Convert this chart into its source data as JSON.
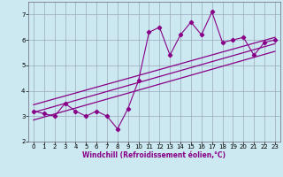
{
  "x": [
    0,
    1,
    2,
    3,
    4,
    5,
    6,
    7,
    8,
    9,
    10,
    11,
    12,
    13,
    14,
    15,
    16,
    17,
    18,
    19,
    20,
    21,
    22,
    23
  ],
  "y": [
    3.2,
    3.1,
    3.0,
    3.5,
    3.2,
    3.0,
    3.2,
    3.0,
    2.5,
    3.3,
    4.4,
    6.3,
    6.5,
    5.4,
    6.2,
    6.7,
    6.2,
    7.1,
    5.9,
    6.0,
    6.1,
    5.4,
    5.9,
    6.0
  ],
  "trend1_x": [
    0,
    23
  ],
  "trend1_y": [
    3.15,
    5.85
  ],
  "trend2_x": [
    0,
    23
  ],
  "trend2_y": [
    3.45,
    6.1
  ],
  "trend3_x": [
    0,
    23
  ],
  "trend3_y": [
    2.85,
    5.55
  ],
  "xlim": [
    -0.5,
    23.5
  ],
  "ylim": [
    2.0,
    7.5
  ],
  "yticks": [
    2,
    3,
    4,
    5,
    6,
    7
  ],
  "xticks": [
    0,
    1,
    2,
    3,
    4,
    5,
    6,
    7,
    8,
    9,
    10,
    11,
    12,
    13,
    14,
    15,
    16,
    17,
    18,
    19,
    20,
    21,
    22,
    23
  ],
  "xlabel": "Windchill (Refroidissement éolien,°C)",
  "line_color": "#880088",
  "bg_color": "#cce8f0",
  "grid_color": "#99aabb",
  "marker": "D",
  "markersize": 2.2,
  "linewidth": 0.8,
  "tick_fontsize": 5.0,
  "xlabel_fontsize": 5.5
}
